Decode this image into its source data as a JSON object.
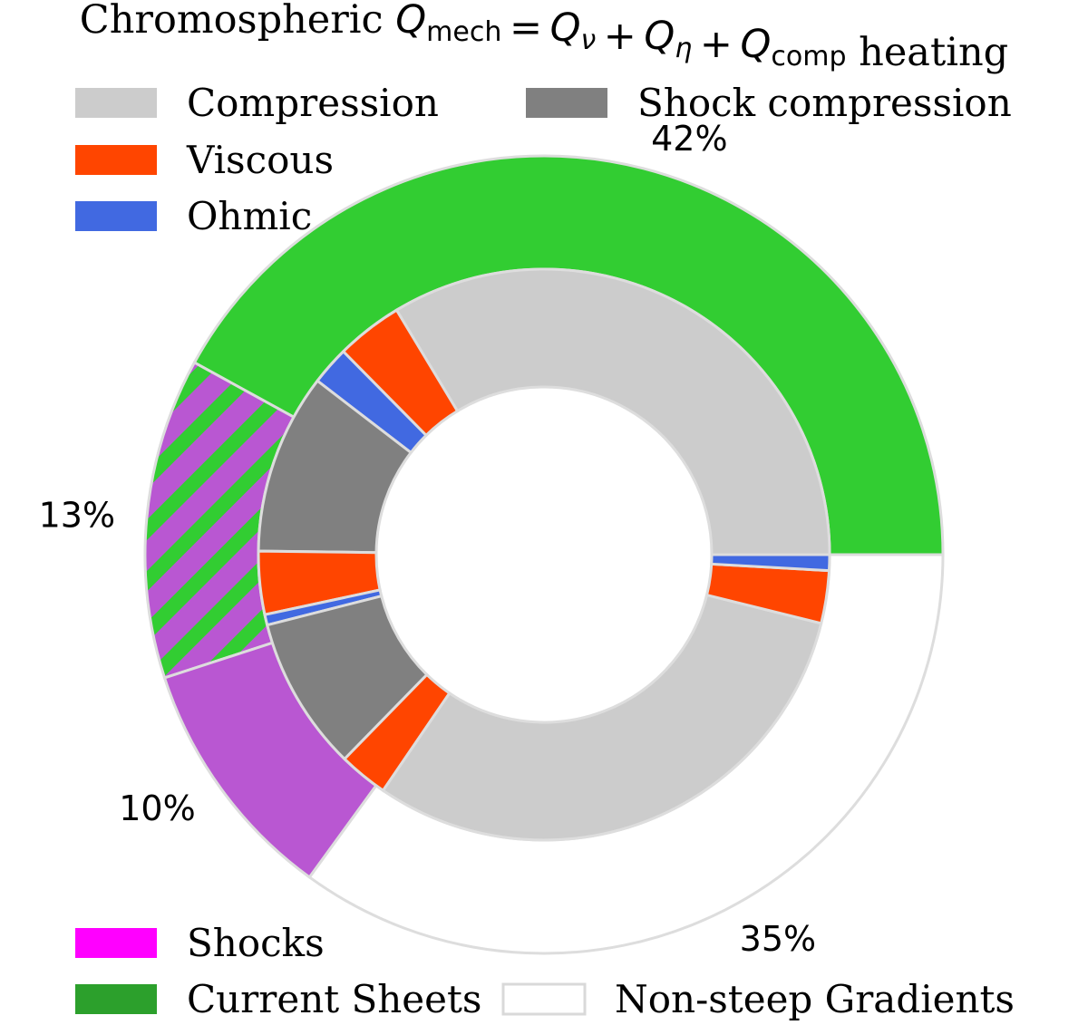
{
  "chart_data": {
    "type": "pie",
    "style": "nested donut",
    "title": {
      "prefix": "Chromospheric ",
      "formula": [
        {
          "sym": "Q",
          "sub": "mech"
        },
        {
          "op": "="
        },
        {
          "sym": "Q",
          "sub": "ν"
        },
        {
          "op": "+"
        },
        {
          "sym": "Q",
          "sub": "η"
        },
        {
          "op": "+"
        },
        {
          "sym": "Q",
          "sub": "comp"
        }
      ],
      "suffix": " heating"
    },
    "outer_ring": {
      "slices": [
        {
          "name": "Current Sheets",
          "value": 42,
          "label": "42%",
          "color": "#32cd32"
        },
        {
          "name": "Shocks & Current Sheets",
          "value": 13,
          "label": "13%",
          "color": "#b957d2",
          "hatch": "#32cd32"
        },
        {
          "name": "Shocks",
          "value": 10,
          "label": "10%",
          "color": "#b957d2"
        },
        {
          "name": "Non-steep Gradients",
          "value": 35,
          "label": "35%",
          "color": "#ffffff"
        }
      ]
    },
    "inner_ring": {
      "slices": [
        {
          "group": "Current Sheets",
          "component": "Compression",
          "value": 33.9
        },
        {
          "group": "Current Sheets",
          "component": "Viscous",
          "value": 3.8
        },
        {
          "group": "Current Sheets",
          "component": "Ohmic",
          "value": 2.2
        },
        {
          "group": "Current Sheets",
          "component": "Shock compression",
          "value": 10.3
        },
        {
          "group": "Current Sheets",
          "component": "Viscous",
          "value": 3.6
        },
        {
          "group": "Current Sheets",
          "component": "Ohmic",
          "value": 0.6
        },
        {
          "group": "Shocks",
          "component": "Shock compression",
          "value": 8.8
        },
        {
          "group": "Shocks",
          "component": "Viscous",
          "value": 2.8
        },
        {
          "group": "Non-steep Gradients",
          "component": "Compression",
          "value": 30.9
        },
        {
          "group": "Non-steep Gradients",
          "component": "Viscous",
          "value": 3.0
        },
        {
          "group": "Current Sheets",
          "component": "Ohmic",
          "value": 0.9
        }
      ]
    },
    "component_colors": {
      "Compression": "#cccccc",
      "Shock compression": "#808080",
      "Viscous": "#ff4500",
      "Ohmic": "#4169e1"
    },
    "legend_top": {
      "placement": "top-left",
      "entries": [
        {
          "label": "Compression",
          "color": "#cccccc"
        },
        {
          "label": "Shock compression",
          "color": "#808080"
        },
        {
          "label": "Viscous",
          "color": "#ff4500"
        },
        {
          "label": "Ohmic",
          "color": "#4169e1"
        }
      ]
    },
    "legend_bottom": {
      "placement": "bottom-left",
      "entries": [
        {
          "label": "Shocks",
          "color": "#ff00ff"
        },
        {
          "label": "Current Sheets",
          "color": "#2ca02c"
        },
        {
          "label": "Non-steep Gradients",
          "color": "#ffffff",
          "outline": "#d9d9d9"
        }
      ]
    },
    "edge_color": "#dddddd"
  }
}
